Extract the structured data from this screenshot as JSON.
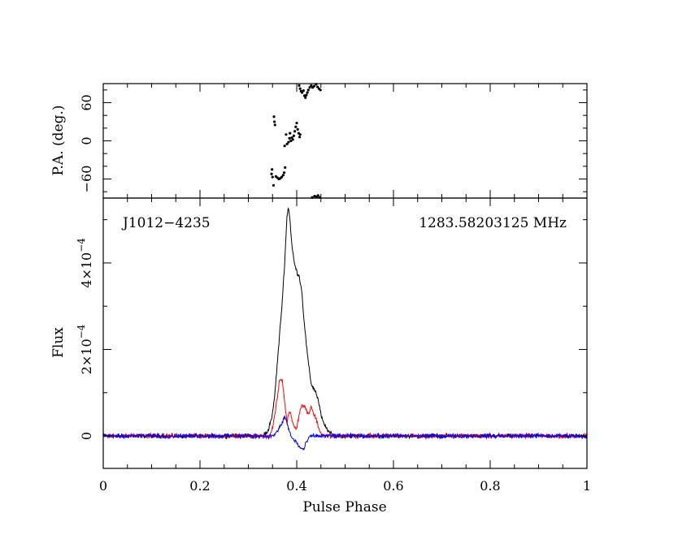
{
  "chart_data": [
    {
      "type": "scatter",
      "panel": "position-angle",
      "ylabel": "P.A. (deg.)",
      "xlim": [
        0,
        1
      ],
      "ylim": [
        -90,
        90
      ],
      "yticks": [
        -60,
        0,
        60
      ],
      "yticks_text": [
        "−60",
        "0",
        "60"
      ],
      "color": "#000000",
      "points": [
        [
          0.348,
          -52
        ],
        [
          0.349,
          -45
        ],
        [
          0.35,
          -57
        ],
        [
          0.352,
          -70
        ],
        [
          0.353,
          38
        ],
        [
          0.354,
          30
        ],
        [
          0.355,
          25
        ],
        [
          0.357,
          -56
        ],
        [
          0.36,
          -58
        ],
        [
          0.363,
          -60
        ],
        [
          0.366,
          -59
        ],
        [
          0.369,
          -57
        ],
        [
          0.372,
          -54
        ],
        [
          0.374,
          -50
        ],
        [
          0.376,
          -42
        ],
        [
          0.375,
          -8
        ],
        [
          0.378,
          10
        ],
        [
          0.38,
          -5
        ],
        [
          0.383,
          -2
        ],
        [
          0.385,
          4
        ],
        [
          0.386,
          12
        ],
        [
          0.388,
          0
        ],
        [
          0.39,
          5
        ],
        [
          0.392,
          2
        ],
        [
          0.394,
          8
        ],
        [
          0.396,
          15
        ],
        [
          0.398,
          22
        ],
        [
          0.4,
          28
        ],
        [
          0.402,
          18
        ],
        [
          0.404,
          12
        ],
        [
          0.406,
          6
        ],
        [
          0.407,
          10
        ],
        [
          0.405,
          87
        ],
        [
          0.407,
          82
        ],
        [
          0.409,
          78
        ],
        [
          0.411,
          76
        ],
        [
          0.414,
          79
        ],
        [
          0.416,
          71
        ],
        [
          0.418,
          68
        ],
        [
          0.42,
          72
        ],
        [
          0.422,
          76
        ],
        [
          0.424,
          80
        ],
        [
          0.427,
          84
        ],
        [
          0.43,
          87
        ],
        [
          0.433,
          84
        ],
        [
          0.436,
          86
        ],
        [
          0.44,
          89
        ],
        [
          0.443,
          85
        ],
        [
          0.446,
          82
        ],
        [
          0.449,
          80
        ],
        [
          0.432,
          -89
        ],
        [
          0.437,
          -87
        ],
        [
          0.441,
          -88
        ],
        [
          0.444,
          -86
        ],
        [
          0.447,
          -89
        ]
      ]
    },
    {
      "type": "line",
      "panel": "flux",
      "title_left": "J1012−4235",
      "title_right": "1283.58203125 MHz",
      "xlabel": "Pulse Phase",
      "ylabel": "Flux",
      "xlim": [
        0,
        1
      ],
      "ylim": [
        -7.5e-05,
        0.00055
      ],
      "xticks": [
        0,
        0.2,
        0.4,
        0.6,
        0.8,
        1
      ],
      "xticks_text": [
        "0",
        "0.2",
        "0.4",
        "0.6",
        "0.8",
        "1"
      ],
      "yticks": [
        0,
        0.0002,
        0.0004
      ],
      "yticks_text": [
        {
          "base": "0",
          "exp": ""
        },
        {
          "base": "2×10",
          "exp": "−4"
        },
        {
          "base": "4×10",
          "exp": "−4"
        }
      ],
      "baseline_noise": 4e-06,
      "series": [
        {
          "color": "#000000",
          "knots": [
            [
              0,
              0
            ],
            [
              0.33,
              0
            ],
            [
              0.34,
              1e-05
            ],
            [
              0.35,
              5e-05
            ],
            [
              0.355,
              0.0001
            ],
            [
              0.36,
              0.00017
            ],
            [
              0.365,
              0.00024
            ],
            [
              0.37,
              0.00031
            ],
            [
              0.375,
              0.0004
            ],
            [
              0.38,
              0.00051
            ],
            [
              0.383,
              0.00053
            ],
            [
              0.386,
              0.0005
            ],
            [
              0.39,
              0.00044
            ],
            [
              0.395,
              0.0004
            ],
            [
              0.4,
              0.00038
            ],
            [
              0.405,
              0.00037
            ],
            [
              0.41,
              0.00034
            ],
            [
              0.415,
              0.00027
            ],
            [
              0.42,
              0.00021
            ],
            [
              0.425,
              0.00016
            ],
            [
              0.43,
              0.00012
            ],
            [
              0.435,
              0.00011
            ],
            [
              0.44,
              0.0001
            ],
            [
              0.445,
              8e-05
            ],
            [
              0.45,
              5e-05
            ],
            [
              0.455,
              3e-05
            ],
            [
              0.46,
              2e-05
            ],
            [
              0.47,
              5e-06
            ],
            [
              0.48,
              0
            ],
            [
              1,
              0
            ]
          ]
        },
        {
          "color": "#ff0000",
          "knots": [
            [
              0,
              0
            ],
            [
              0.345,
              0
            ],
            [
              0.35,
              2e-05
            ],
            [
              0.355,
              5e-05
            ],
            [
              0.36,
              9e-05
            ],
            [
              0.365,
              0.00013
            ],
            [
              0.37,
              0.00013
            ],
            [
              0.375,
              8e-05
            ],
            [
              0.38,
              3e-05
            ],
            [
              0.385,
              6e-05
            ],
            [
              0.39,
              4e-05
            ],
            [
              0.395,
              2e-05
            ],
            [
              0.4,
              2e-05
            ],
            [
              0.405,
              5e-05
            ],
            [
              0.41,
              7e-05
            ],
            [
              0.415,
              7e-05
            ],
            [
              0.42,
              6e-05
            ],
            [
              0.425,
              5e-05
            ],
            [
              0.43,
              7e-05
            ],
            [
              0.435,
              5e-05
            ],
            [
              0.44,
              4e-05
            ],
            [
              0.445,
              2e-05
            ],
            [
              0.45,
              5e-06
            ],
            [
              0.46,
              0
            ],
            [
              1,
              0
            ]
          ]
        },
        {
          "color": "#0000ff",
          "knots": [
            [
              0,
              0
            ],
            [
              0.35,
              0
            ],
            [
              0.355,
              5e-06
            ],
            [
              0.36,
              1e-05
            ],
            [
              0.365,
              2e-05
            ],
            [
              0.37,
              3e-05
            ],
            [
              0.375,
              4.5e-05
            ],
            [
              0.38,
              3e-05
            ],
            [
              0.385,
              1e-05
            ],
            [
              0.39,
              -5e-06
            ],
            [
              0.395,
              -1e-05
            ],
            [
              0.4,
              -1.5e-05
            ],
            [
              0.405,
              -2.5e-05
            ],
            [
              0.41,
              -3e-05
            ],
            [
              0.415,
              -3e-05
            ],
            [
              0.42,
              -1.5e-05
            ],
            [
              0.425,
              -5e-06
            ],
            [
              0.43,
              0
            ],
            [
              1,
              0
            ]
          ]
        }
      ]
    }
  ]
}
